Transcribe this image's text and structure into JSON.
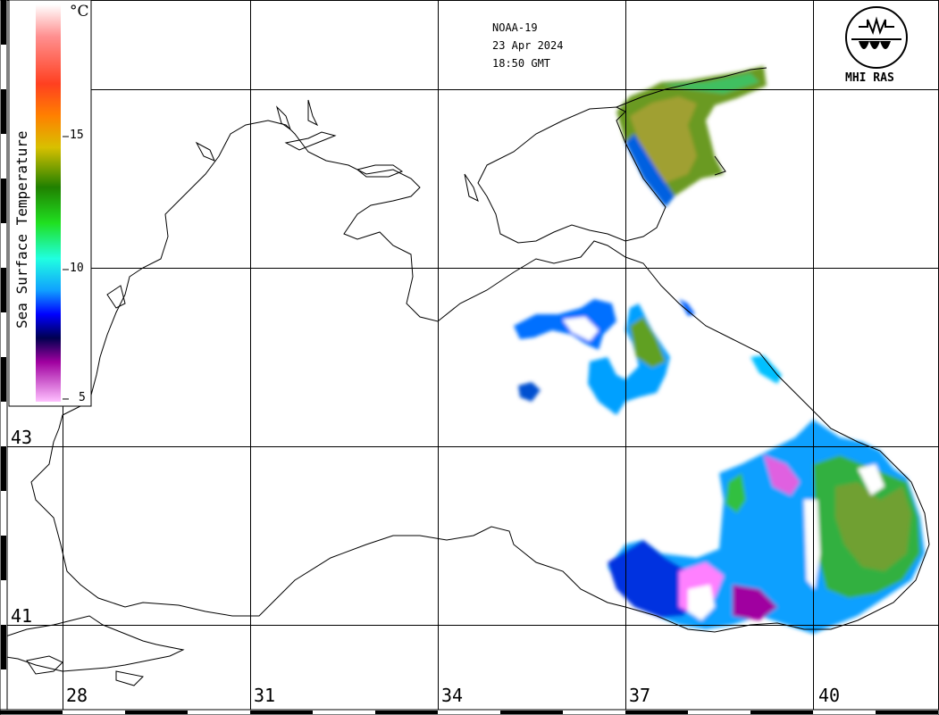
{
  "header": {
    "satellite": "NOAA-19",
    "date": "23 Apr 2024",
    "time": "18:50 GMT"
  },
  "logo": {
    "text": "MHI RAS",
    "icon": "mhi-ras-logo-icon"
  },
  "legend": {
    "title": "Sea Surface Temperature",
    "unit": "°C",
    "ticks": [
      "15",
      "10",
      "5"
    ],
    "gradient_colors": [
      "#ffffff",
      "#ff6060",
      "#ff8000",
      "#e0c000",
      "#00a000",
      "#00e0e0",
      "#0000ff",
      "#000040",
      "#a000a0",
      "#ff80ff"
    ]
  },
  "axes": {
    "longitudes": [
      "28",
      "31",
      "34",
      "37",
      "40"
    ],
    "latitudes": [
      "43",
      "41"
    ]
  },
  "colors": {
    "land_border": "#000000",
    "gridline": "#000000",
    "background": "#ffffff"
  }
}
